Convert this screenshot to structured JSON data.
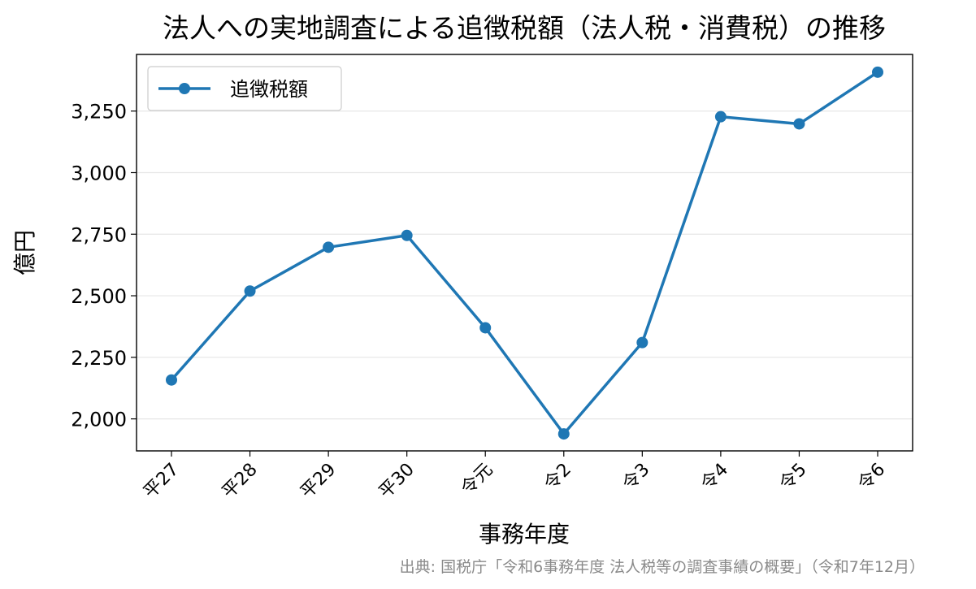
{
  "chart_data": {
    "type": "line",
    "title": "法人への実地調査による追徴税額（法人税・消費税）の推移",
    "xlabel": "事務年度",
    "ylabel": "億円",
    "categories": [
      "平27",
      "平28",
      "平29",
      "平30",
      "令元",
      "令2",
      "令3",
      "令4",
      "令5",
      "令6"
    ],
    "series": [
      {
        "name": "追徴税額",
        "color": "#1f77b4",
        "values": [
          2158,
          2519,
          2697,
          2745,
          2370,
          1939,
          2310,
          3227,
          3198,
          3408
        ]
      }
    ],
    "ylim": [
      1870,
      3480
    ],
    "yticks": [
      "2,000",
      "2,250",
      "2,500",
      "2,750",
      "3,000",
      "3,250"
    ],
    "ytick_values": [
      2000,
      2250,
      2500,
      2750,
      3000,
      3250
    ],
    "grid": "horizontal",
    "legend_position": "upper left",
    "source": "出典: 国税庁「令和6事務年度 法人税等の調査事績の概要」（令和7年12月）"
  }
}
